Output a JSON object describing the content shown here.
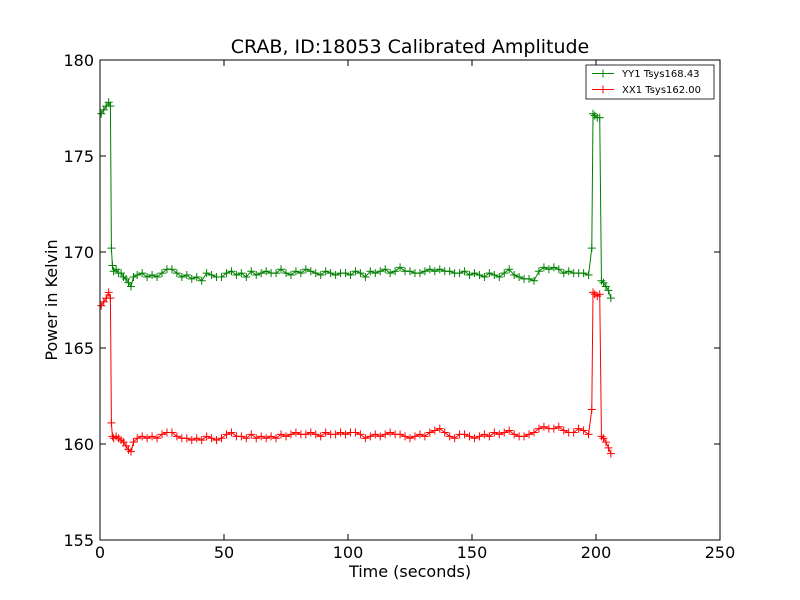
{
  "chart_data": {
    "type": "line",
    "title": "CRAB, ID:18053 Calibrated Amplitude",
    "xlabel": "Time (seconds)",
    "ylabel": "Power in Kelvin",
    "xlim": [
      0,
      250
    ],
    "ylim": [
      155,
      180
    ],
    "xticks": [
      "0",
      "50",
      "100",
      "150",
      "200",
      "250"
    ],
    "yticks": [
      "155",
      "160",
      "165",
      "170",
      "175",
      "180"
    ],
    "grid": false,
    "legend_position": "top-right",
    "marker": "+",
    "series": [
      {
        "name": "YY1 Tsys168.43",
        "color": "#008000",
        "points": [
          [
            0.5,
            177.2
          ],
          [
            1.5,
            177.4
          ],
          [
            2.5,
            177.6
          ],
          [
            3.5,
            177.8
          ],
          [
            4.2,
            177.6
          ],
          [
            4.6,
            170.2
          ],
          [
            5.0,
            169.3
          ],
          [
            5.5,
            169.0
          ],
          [
            6.5,
            169.1
          ],
          [
            7.5,
            168.9
          ],
          [
            8.5,
            168.9
          ],
          [
            9.5,
            168.7
          ],
          [
            10.5,
            168.6
          ],
          [
            11.5,
            168.4
          ],
          [
            12.5,
            168.2
          ],
          [
            13.5,
            168.7
          ],
          [
            15,
            168.8
          ],
          [
            17,
            168.9
          ],
          [
            19,
            168.7
          ],
          [
            21,
            168.8
          ],
          [
            23,
            168.7
          ],
          [
            25,
            168.9
          ],
          [
            27,
            169.1
          ],
          [
            29,
            169.1
          ],
          [
            31,
            168.9
          ],
          [
            33,
            168.7
          ],
          [
            35,
            168.8
          ],
          [
            37,
            168.6
          ],
          [
            39,
            168.7
          ],
          [
            41,
            168.5
          ],
          [
            43,
            168.9
          ],
          [
            45,
            168.8
          ],
          [
            47,
            168.7
          ],
          [
            49,
            168.7
          ],
          [
            51,
            168.9
          ],
          [
            53,
            169.0
          ],
          [
            55,
            168.8
          ],
          [
            57,
            168.9
          ],
          [
            59,
            168.7
          ],
          [
            61,
            169.0
          ],
          [
            63,
            168.8
          ],
          [
            65,
            168.9
          ],
          [
            67,
            169.0
          ],
          [
            69,
            168.9
          ],
          [
            71,
            168.9
          ],
          [
            73,
            169.1
          ],
          [
            75,
            168.9
          ],
          [
            77,
            168.8
          ],
          [
            79,
            169.0
          ],
          [
            81,
            168.9
          ],
          [
            83,
            169.1
          ],
          [
            85,
            169.0
          ],
          [
            87,
            168.9
          ],
          [
            89,
            168.8
          ],
          [
            91,
            169.0
          ],
          [
            93,
            168.9
          ],
          [
            95,
            168.8
          ],
          [
            97,
            168.9
          ],
          [
            99,
            168.9
          ],
          [
            101,
            168.8
          ],
          [
            103,
            169.0
          ],
          [
            105,
            168.9
          ],
          [
            107,
            168.7
          ],
          [
            109,
            169.0
          ],
          [
            111,
            168.9
          ],
          [
            113,
            169.0
          ],
          [
            115,
            169.1
          ],
          [
            117,
            168.9
          ],
          [
            119,
            169.0
          ],
          [
            121,
            169.2
          ],
          [
            123,
            169.0
          ],
          [
            125,
            169.0
          ],
          [
            127,
            168.9
          ],
          [
            129,
            168.9
          ],
          [
            131,
            169.0
          ],
          [
            133,
            169.1
          ],
          [
            135,
            169.0
          ],
          [
            137,
            169.1
          ],
          [
            139,
            169.0
          ],
          [
            141,
            169.0
          ],
          [
            143,
            168.9
          ],
          [
            145,
            168.9
          ],
          [
            147,
            169.0
          ],
          [
            149,
            168.8
          ],
          [
            151,
            168.9
          ],
          [
            153,
            168.8
          ],
          [
            155,
            168.7
          ],
          [
            157,
            168.9
          ],
          [
            159,
            168.8
          ],
          [
            161,
            168.7
          ],
          [
            163,
            168.9
          ],
          [
            165,
            169.1
          ],
          [
            167,
            168.8
          ],
          [
            169,
            168.7
          ],
          [
            171,
            168.6
          ],
          [
            173,
            168.6
          ],
          [
            175,
            168.5
          ],
          [
            177,
            169.0
          ],
          [
            179,
            169.2
          ],
          [
            181,
            169.1
          ],
          [
            183,
            169.2
          ],
          [
            185,
            169.1
          ],
          [
            187,
            168.9
          ],
          [
            189,
            169.0
          ],
          [
            191,
            168.9
          ],
          [
            193,
            168.9
          ],
          [
            195,
            168.9
          ],
          [
            197,
            168.8
          ],
          [
            198.3,
            170.2
          ],
          [
            198.8,
            177.2
          ],
          [
            199.5,
            177.1
          ],
          [
            200.5,
            177.0
          ],
          [
            201.5,
            177.0
          ],
          [
            202.2,
            168.5
          ],
          [
            203,
            168.4
          ],
          [
            204,
            168.2
          ],
          [
            205,
            168.0
          ],
          [
            206,
            167.6
          ]
        ]
      },
      {
        "name": "XX1 Tsys162.00",
        "color": "#ff0000",
        "points": [
          [
            0.5,
            167.2
          ],
          [
            1.5,
            167.4
          ],
          [
            2.5,
            167.6
          ],
          [
            3.5,
            167.9
          ],
          [
            4.2,
            167.6
          ],
          [
            4.6,
            161.1
          ],
          [
            5.0,
            160.4
          ],
          [
            5.5,
            160.3
          ],
          [
            6.5,
            160.4
          ],
          [
            7.5,
            160.3
          ],
          [
            8.5,
            160.2
          ],
          [
            9.5,
            160.1
          ],
          [
            10.5,
            159.9
          ],
          [
            11.5,
            159.7
          ],
          [
            12.5,
            159.6
          ],
          [
            13.5,
            160.1
          ],
          [
            15,
            160.3
          ],
          [
            17,
            160.4
          ],
          [
            19,
            160.3
          ],
          [
            21,
            160.4
          ],
          [
            23,
            160.3
          ],
          [
            25,
            160.5
          ],
          [
            27,
            160.6
          ],
          [
            29,
            160.6
          ],
          [
            31,
            160.4
          ],
          [
            33,
            160.3
          ],
          [
            35,
            160.3
          ],
          [
            37,
            160.2
          ],
          [
            39,
            160.3
          ],
          [
            41,
            160.2
          ],
          [
            43,
            160.4
          ],
          [
            45,
            160.3
          ],
          [
            47,
            160.2
          ],
          [
            49,
            160.3
          ],
          [
            51,
            160.5
          ],
          [
            53,
            160.6
          ],
          [
            55,
            160.4
          ],
          [
            57,
            160.4
          ],
          [
            59,
            160.3
          ],
          [
            61,
            160.5
          ],
          [
            63,
            160.3
          ],
          [
            65,
            160.4
          ],
          [
            67,
            160.3
          ],
          [
            69,
            160.4
          ],
          [
            71,
            160.3
          ],
          [
            73,
            160.5
          ],
          [
            75,
            160.4
          ],
          [
            77,
            160.5
          ],
          [
            79,
            160.6
          ],
          [
            81,
            160.5
          ],
          [
            83,
            160.5
          ],
          [
            85,
            160.6
          ],
          [
            87,
            160.5
          ],
          [
            89,
            160.4
          ],
          [
            91,
            160.6
          ],
          [
            93,
            160.5
          ],
          [
            95,
            160.5
          ],
          [
            97,
            160.6
          ],
          [
            99,
            160.5
          ],
          [
            101,
            160.6
          ],
          [
            103,
            160.6
          ],
          [
            105,
            160.5
          ],
          [
            107,
            160.3
          ],
          [
            109,
            160.4
          ],
          [
            111,
            160.5
          ],
          [
            113,
            160.4
          ],
          [
            115,
            160.5
          ],
          [
            117,
            160.6
          ],
          [
            119,
            160.5
          ],
          [
            121,
            160.5
          ],
          [
            123,
            160.4
          ],
          [
            125,
            160.3
          ],
          [
            127,
            160.4
          ],
          [
            129,
            160.5
          ],
          [
            131,
            160.4
          ],
          [
            133,
            160.6
          ],
          [
            135,
            160.7
          ],
          [
            137,
            160.8
          ],
          [
            139,
            160.6
          ],
          [
            141,
            160.4
          ],
          [
            143,
            160.3
          ],
          [
            145,
            160.5
          ],
          [
            147,
            160.5
          ],
          [
            149,
            160.4
          ],
          [
            151,
            160.3
          ],
          [
            153,
            160.4
          ],
          [
            155,
            160.5
          ],
          [
            157,
            160.4
          ],
          [
            159,
            160.6
          ],
          [
            161,
            160.5
          ],
          [
            163,
            160.6
          ],
          [
            165,
            160.7
          ],
          [
            167,
            160.5
          ],
          [
            169,
            160.4
          ],
          [
            171,
            160.4
          ],
          [
            173,
            160.5
          ],
          [
            175,
            160.6
          ],
          [
            177,
            160.8
          ],
          [
            179,
            160.9
          ],
          [
            181,
            160.8
          ],
          [
            183,
            160.8
          ],
          [
            185,
            160.9
          ],
          [
            187,
            160.7
          ],
          [
            189,
            160.6
          ],
          [
            191,
            160.6
          ],
          [
            193,
            160.8
          ],
          [
            195,
            160.7
          ],
          [
            197,
            160.5
          ],
          [
            198.3,
            161.8
          ],
          [
            198.8,
            167.9
          ],
          [
            199.5,
            167.8
          ],
          [
            200.5,
            167.7
          ],
          [
            201.5,
            167.8
          ],
          [
            202.2,
            160.4
          ],
          [
            203,
            160.3
          ],
          [
            204,
            160.1
          ],
          [
            205,
            159.8
          ],
          [
            206,
            159.5
          ]
        ]
      }
    ]
  }
}
